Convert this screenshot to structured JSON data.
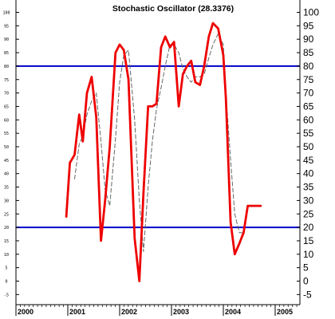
{
  "chart_data": {
    "type": "line",
    "title": "Stochastic Oscillator (28.3376)",
    "xlabel": "",
    "ylabel": "",
    "x_ticks": [
      "2000",
      "2001",
      "2002",
      "2003",
      "2004",
      "2005"
    ],
    "y_ticks": [
      100,
      95,
      90,
      85,
      80,
      75,
      70,
      65,
      60,
      55,
      50,
      45,
      40,
      35,
      30,
      25,
      20,
      15,
      10,
      5,
      0,
      -5
    ],
    "xlim": [
      2000.0,
      2005.45
    ],
    "ylim": [
      -8,
      103
    ],
    "grid": false,
    "reference_lines": [
      80,
      20
    ],
    "series": [
      {
        "color": "#ee0000",
        "style": "solid",
        "x": [
          2000.97,
          2001.04,
          2001.13,
          2001.22,
          2001.29,
          2001.37,
          2001.46,
          2001.55,
          2001.64,
          2001.72,
          2001.81,
          2001.92,
          2002.0,
          2002.08,
          2002.17,
          2002.29,
          2002.38,
          2002.46,
          2002.55,
          2002.63,
          2002.71,
          2002.8,
          2002.88,
          2002.97,
          2003.05,
          2003.14,
          2003.22,
          2003.3,
          2003.38,
          2003.46,
          2003.55,
          2003.63,
          2003.72,
          2003.8,
          2003.9,
          2004.0,
          2004.05,
          2004.14,
          2004.22,
          2004.31,
          2004.39,
          2004.47,
          2004.56,
          2004.64,
          2004.72
        ],
        "values": [
          24,
          44,
          47,
          62,
          52,
          70,
          76,
          61,
          15,
          30,
          50,
          85,
          88,
          86,
          75,
          16,
          0,
          33,
          65,
          65,
          66,
          87,
          91,
          87,
          89,
          65,
          77,
          80,
          82,
          74,
          73,
          80,
          91,
          96,
          94,
          84,
          68,
          22,
          10,
          14,
          18,
          28,
          28,
          28,
          28
        ]
      },
      {
        "color": "#666666",
        "style": "dashed",
        "x": [
          2001.13,
          2001.22,
          2001.29,
          2001.37,
          2001.46,
          2001.55,
          2001.64,
          2001.72,
          2001.81,
          2001.92,
          2002.0,
          2002.08,
          2002.17,
          2002.29,
          2002.38,
          2002.46,
          2002.55,
          2002.63,
          2002.71,
          2002.8,
          2002.88,
          2002.97,
          2003.05,
          2003.14,
          2003.22,
          2003.3,
          2003.38,
          2003.46,
          2003.55,
          2003.63,
          2003.72,
          2003.8,
          2003.9,
          2004.0,
          2004.05,
          2004.14,
          2004.22,
          2004.31,
          2004.39
        ],
        "values": [
          38,
          51,
          54,
          62,
          67,
          70,
          52,
          34,
          28,
          53,
          74,
          84,
          86,
          60,
          30,
          11,
          35,
          52,
          64,
          72,
          80,
          88,
          88,
          85,
          79,
          76,
          74,
          76,
          76,
          77,
          83,
          88,
          92,
          88,
          70,
          45,
          25,
          18,
          18
        ]
      }
    ]
  }
}
